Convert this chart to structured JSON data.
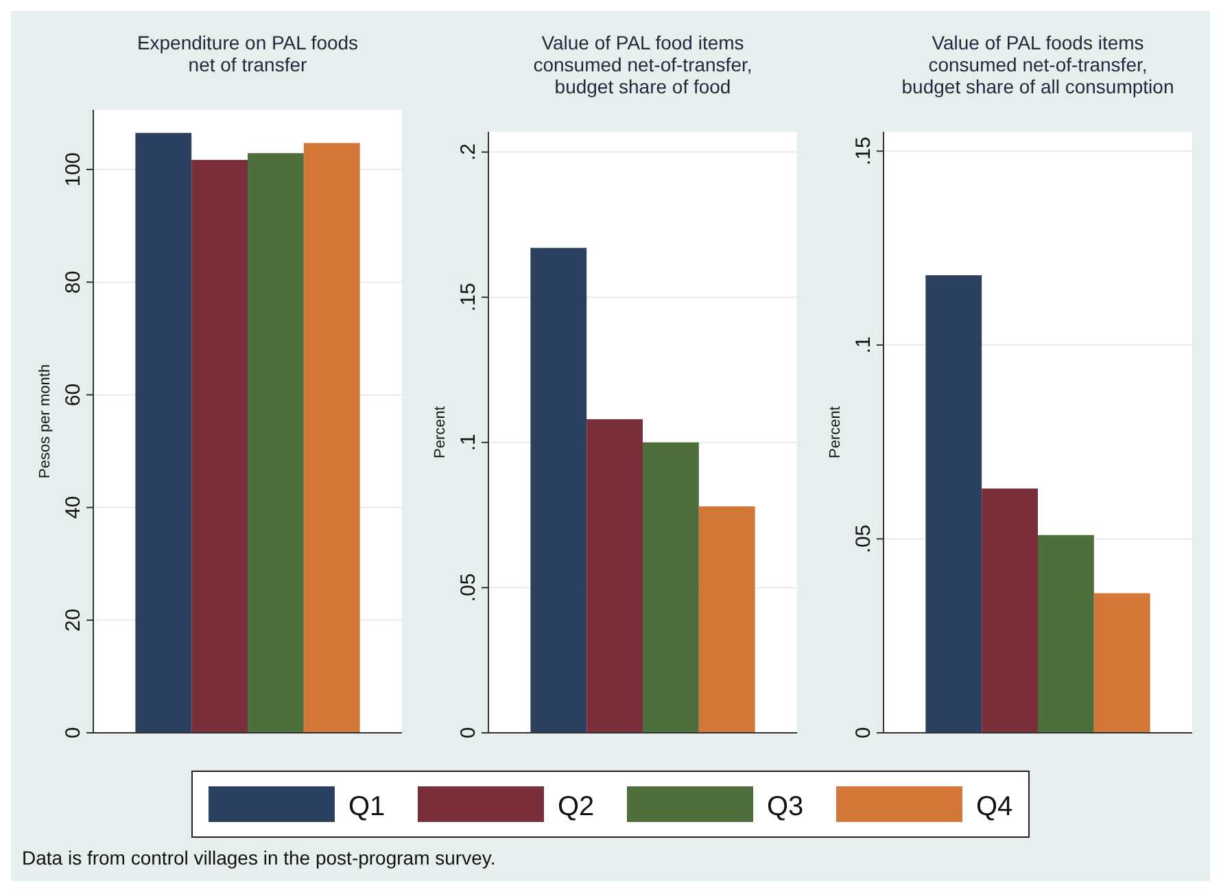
{
  "chart_data": [
    {
      "type": "bar",
      "title": "Expenditure on PAL foods\nnet of transfer",
      "ylabel": "Pesos per month",
      "categories": [
        null
      ],
      "ylim": [
        0,
        110.6
      ],
      "yticks": [
        0,
        20,
        40,
        60,
        80,
        100
      ],
      "grid": "y",
      "legend": "bottom",
      "annotations": [
        "Data is from control villages in the post-program survey."
      ],
      "series": [
        {
          "name": "Q1",
          "color": "#2b3f5e",
          "values": [
            106.5
          ]
        },
        {
          "name": "Q2",
          "color": "#7a2e3a",
          "values": [
            101.7
          ]
        },
        {
          "name": "Q3",
          "color": "#4e6e3c",
          "values": [
            102.9
          ]
        },
        {
          "name": "Q4",
          "color": "#d4783a",
          "values": [
            104.7
          ]
        }
      ]
    },
    {
      "type": "bar",
      "title": "Value of PAL food items\nconsumed net-of-transfer,\nbudget share of food",
      "ylabel": "Percent",
      "categories": [
        null
      ],
      "ylim": [
        0,
        0.207
      ],
      "yticks": [
        0,
        {
          "value": 0.05,
          "label": ".05"
        },
        {
          "value": 0.1,
          "label": ".1"
        },
        {
          "value": 0.15,
          "label": ".15"
        },
        {
          "value": 0.2,
          "label": ".2"
        }
      ],
      "grid": "y",
      "series": [
        {
          "color": "#2b3f5e",
          "values": [
            0.167
          ]
        },
        {
          "color": "#7a2e3a",
          "values": [
            0.108
          ]
        },
        {
          "color": "#4e6e3c",
          "values": [
            0.1
          ]
        },
        {
          "color": "#d4783a",
          "values": [
            0.078
          ]
        }
      ]
    },
    {
      "type": "bar",
      "title": "Value of PAL foods items\nconsumed net-of-transfer,\nbudget share of all consumption",
      "ylabel": "Percent",
      "categories": [
        null
      ],
      "ylim": [
        0,
        0.155
      ],
      "yticks": [
        0,
        {
          "value": 0.05,
          "label": ".05"
        },
        {
          "value": 0.1,
          "label": ".1"
        },
        {
          "value": 0.15,
          "label": ".15"
        }
      ],
      "grid": "y",
      "series": [
        {
          "color": "#2b3f5e",
          "values": [
            0.118
          ]
        },
        {
          "color": "#7a2e3a",
          "values": [
            0.063
          ]
        },
        {
          "color": "#4e6e3c",
          "values": [
            0.051
          ]
        },
        {
          "color": "#d4783a",
          "values": [
            0.036
          ]
        }
      ]
    }
  ]
}
